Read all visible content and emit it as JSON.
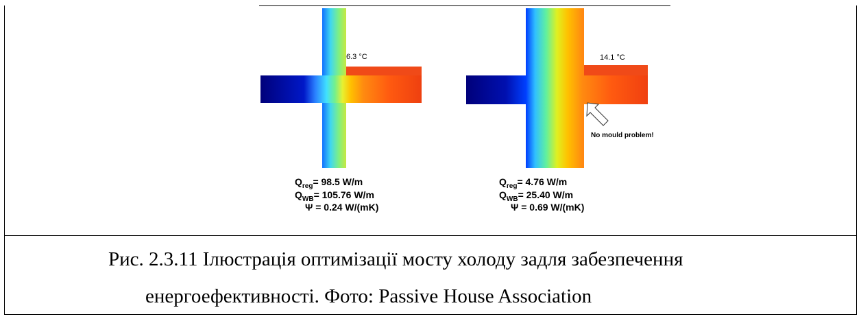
{
  "figure": {
    "left": {
      "temperature": "6.3 °C",
      "q_reg": {
        "symbol": "Q",
        "subscript": "reg",
        "value": "= 98.5 W/m"
      },
      "q_wb": {
        "symbol": "Q",
        "subscript": "WB",
        "value": "= 105.76 W/m"
      },
      "psi": "Ψ = 0.24 W/(mK)"
    },
    "right": {
      "temperature": "14.1 °C",
      "note": "No mould problem!",
      "q_reg": {
        "symbol": "Q",
        "subscript": "reg",
        "value": "= 4.76 W/m"
      },
      "q_wb": {
        "symbol": "Q",
        "subscript": "WB",
        "value": "= 25.40 W/m"
      },
      "psi": "Ψ = 0.69 W/(mK)"
    }
  },
  "caption": {
    "lines": [
      "Рис. 2.3.11 Ілюстрація оптимізації мосту холоду задля забезпечення",
      "енергоефективності. Фото: Passive House Association"
    ]
  }
}
